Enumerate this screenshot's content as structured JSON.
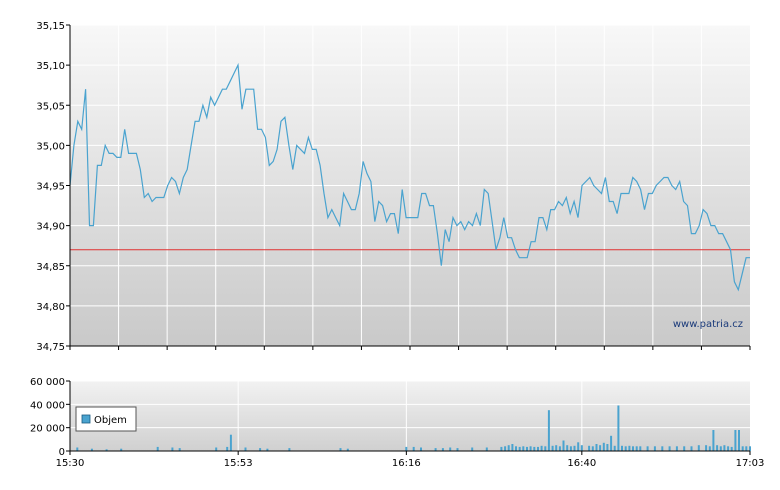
{
  "watermark": "www.patria.cz",
  "legend": {
    "label": "Objem"
  },
  "colors": {
    "price_line": "#4aa3cf",
    "reference_line": "#e03030",
    "volume_bar": "#4aa3cf",
    "grid": "#ffffff"
  },
  "chart_data": [
    {
      "type": "line",
      "name": "price",
      "ylim": [
        34.75,
        35.15
      ],
      "y_ticks": [
        "35,15",
        "35,10",
        "35,05",
        "35,00",
        "34,95",
        "34,90",
        "34,85",
        "34,80",
        "34,75"
      ],
      "y_tick_values": [
        35.15,
        35.1,
        35.05,
        35.0,
        34.95,
        34.9,
        34.85,
        34.8,
        34.75
      ],
      "reference_value": 34.87,
      "x_range_minutes": [
        930,
        1023
      ],
      "values": [
        34.95,
        35.0,
        35.03,
        35.02,
        35.07,
        34.9,
        34.9,
        34.975,
        34.975,
        35.0,
        34.99,
        34.99,
        34.985,
        34.985,
        35.02,
        34.99,
        34.99,
        34.99,
        34.97,
        34.935,
        34.94,
        34.93,
        34.935,
        34.935,
        34.935,
        34.95,
        34.96,
        34.955,
        34.94,
        34.96,
        34.97,
        35.0,
        35.03,
        35.03,
        35.05,
        35.035,
        35.06,
        35.05,
        35.06,
        35.07,
        35.07,
        35.08,
        35.09,
        35.1,
        35.045,
        35.07,
        35.07,
        35.07,
        35.02,
        35.02,
        35.01,
        34.975,
        34.98,
        34.995,
        35.03,
        35.035,
        35.0,
        34.97,
        35.0,
        34.995,
        34.99,
        35.01,
        34.995,
        34.995,
        34.975,
        34.94,
        34.91,
        34.92,
        34.91,
        34.9,
        34.94,
        34.93,
        34.92,
        34.92,
        34.94,
        34.98,
        34.965,
        34.955,
        34.905,
        34.93,
        34.925,
        34.905,
        34.915,
        34.915,
        34.89,
        34.945,
        34.91,
        34.91,
        34.91,
        34.91,
        34.94,
        34.94,
        34.925,
        34.925,
        34.89,
        34.85,
        34.895,
        34.88,
        34.91,
        34.9,
        34.905,
        34.895,
        34.905,
        34.9,
        34.915,
        34.9,
        34.945,
        34.94,
        34.905,
        34.87,
        34.885,
        34.91,
        34.885,
        34.885,
        34.87,
        34.86,
        34.86,
        34.86,
        34.88,
        34.88,
        34.91,
        34.91,
        34.895,
        34.92,
        34.92,
        34.93,
        34.925,
        34.935,
        34.915,
        34.93,
        34.91,
        34.95,
        34.955,
        34.96,
        34.95,
        34.945,
        34.94,
        34.96,
        34.93,
        34.93,
        34.915,
        34.94,
        34.94,
        34.94,
        34.96,
        34.955,
        34.945,
        34.92,
        34.94,
        34.94,
        34.95,
        34.955,
        34.96,
        34.96,
        34.95,
        34.945,
        34.955,
        34.93,
        34.925,
        34.89,
        34.89,
        34.9,
        34.92,
        34.915,
        34.9,
        34.9,
        34.89,
        34.89,
        34.88,
        34.87,
        34.83,
        34.82,
        34.84,
        34.86,
        34.86
      ]
    },
    {
      "type": "bar",
      "name": "Objem",
      "ylim": [
        0,
        60000
      ],
      "y_ticks": [
        "60 000",
        "40 000",
        "20 000",
        "0"
      ],
      "y_tick_values": [
        60000,
        40000,
        20000,
        0
      ],
      "x_ticks": [
        "15:30",
        "15:53",
        "16:16",
        "16:40",
        "17:03"
      ],
      "x_tick_minutes": [
        930,
        953,
        976,
        1000,
        1023
      ],
      "x_range_minutes": [
        930,
        1023
      ],
      "bars": [
        {
          "t": 931,
          "v": 3000
        },
        {
          "t": 933,
          "v": 2000
        },
        {
          "t": 935,
          "v": 1500
        },
        {
          "t": 937,
          "v": 2000
        },
        {
          "t": 942,
          "v": 3500
        },
        {
          "t": 944,
          "v": 3000
        },
        {
          "t": 945,
          "v": 2500
        },
        {
          "t": 950,
          "v": 3000
        },
        {
          "t": 951.5,
          "v": 3500
        },
        {
          "t": 952,
          "v": 14000
        },
        {
          "t": 954,
          "v": 3000
        },
        {
          "t": 956,
          "v": 2500
        },
        {
          "t": 957,
          "v": 2000
        },
        {
          "t": 960,
          "v": 2500
        },
        {
          "t": 967,
          "v": 2500
        },
        {
          "t": 968,
          "v": 2000
        },
        {
          "t": 976,
          "v": 3500
        },
        {
          "t": 977,
          "v": 3500
        },
        {
          "t": 978,
          "v": 3000
        },
        {
          "t": 980,
          "v": 2500
        },
        {
          "t": 981,
          "v": 2500
        },
        {
          "t": 982,
          "v": 3000
        },
        {
          "t": 983,
          "v": 2500
        },
        {
          "t": 985,
          "v": 3000
        },
        {
          "t": 987,
          "v": 3000
        },
        {
          "t": 989,
          "v": 3500
        },
        {
          "t": 989.5,
          "v": 4000
        },
        {
          "t": 990,
          "v": 5000
        },
        {
          "t": 990.5,
          "v": 6000
        },
        {
          "t": 991,
          "v": 4000
        },
        {
          "t": 991.5,
          "v": 3500
        },
        {
          "t": 992,
          "v": 4000
        },
        {
          "t": 992.5,
          "v": 3500
        },
        {
          "t": 993,
          "v": 4000
        },
        {
          "t": 993.5,
          "v": 3500
        },
        {
          "t": 994,
          "v": 3500
        },
        {
          "t": 994.5,
          "v": 4500
        },
        {
          "t": 995,
          "v": 4000
        },
        {
          "t": 995.5,
          "v": 35000
        },
        {
          "t": 996,
          "v": 4500
        },
        {
          "t": 996.5,
          "v": 5000
        },
        {
          "t": 997,
          "v": 4000
        },
        {
          "t": 997.5,
          "v": 9000
        },
        {
          "t": 998,
          "v": 5000
        },
        {
          "t": 998.5,
          "v": 4000
        },
        {
          "t": 999,
          "v": 4500
        },
        {
          "t": 999.5,
          "v": 7500
        },
        {
          "t": 1000,
          "v": 5000
        },
        {
          "t": 1001,
          "v": 4500
        },
        {
          "t": 1001.5,
          "v": 4000
        },
        {
          "t": 1002,
          "v": 6000
        },
        {
          "t": 1002.5,
          "v": 5000
        },
        {
          "t": 1003,
          "v": 7000
        },
        {
          "t": 1003.5,
          "v": 6000
        },
        {
          "t": 1004,
          "v": 13000
        },
        {
          "t": 1004.5,
          "v": 4500
        },
        {
          "t": 1005,
          "v": 39000
        },
        {
          "t": 1005.5,
          "v": 4500
        },
        {
          "t": 1006,
          "v": 4000
        },
        {
          "t": 1006.5,
          "v": 4500
        },
        {
          "t": 1007,
          "v": 4000
        },
        {
          "t": 1007.5,
          "v": 4000
        },
        {
          "t": 1008,
          "v": 4000
        },
        {
          "t": 1009,
          "v": 4000
        },
        {
          "t": 1010,
          "v": 4000
        },
        {
          "t": 1011,
          "v": 4000
        },
        {
          "t": 1012,
          "v": 4000
        },
        {
          "t": 1013,
          "v": 4000
        },
        {
          "t": 1014,
          "v": 4000
        },
        {
          "t": 1015,
          "v": 4000
        },
        {
          "t": 1016,
          "v": 5000
        },
        {
          "t": 1017,
          "v": 5000
        },
        {
          "t": 1017.5,
          "v": 4000
        },
        {
          "t": 1018,
          "v": 18000
        },
        {
          "t": 1018.5,
          "v": 5000
        },
        {
          "t": 1019,
          "v": 4000
        },
        {
          "t": 1019.5,
          "v": 5000
        },
        {
          "t": 1020,
          "v": 4000
        },
        {
          "t": 1020.5,
          "v": 3500
        },
        {
          "t": 1021,
          "v": 18000
        },
        {
          "t": 1021.5,
          "v": 18000
        },
        {
          "t": 1022,
          "v": 4000
        },
        {
          "t": 1022.5,
          "v": 4000
        },
        {
          "t": 1023,
          "v": 4000
        }
      ]
    }
  ]
}
